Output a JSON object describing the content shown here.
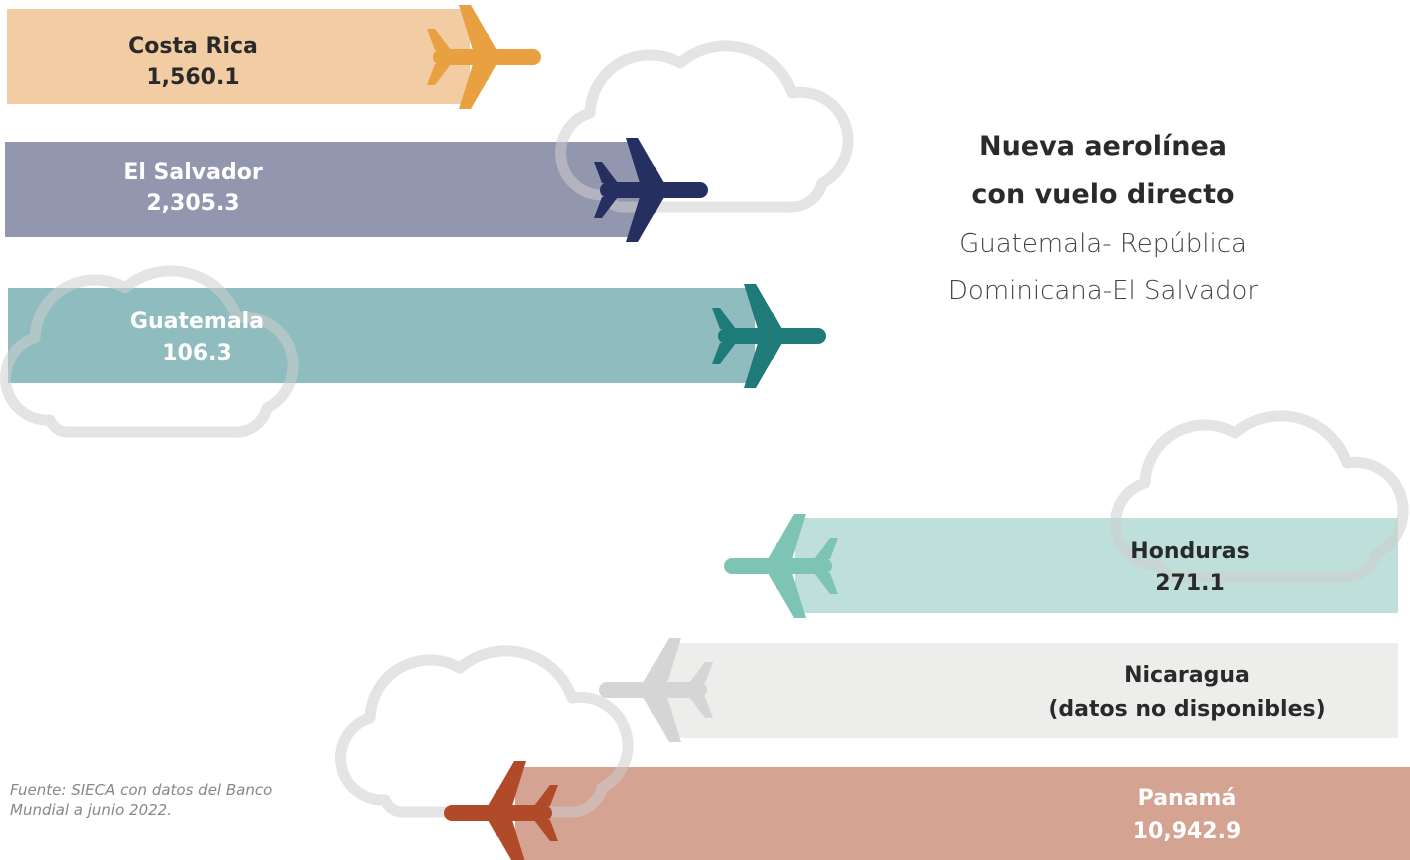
{
  "header": {
    "title_line1": "Nueva aerolínea",
    "title_line2": "con vuelo directo",
    "subtitle_line1": "Guatemala- República",
    "subtitle_line2": "Dominicana-El Salvador"
  },
  "items": [
    {
      "name": "Costa Rica",
      "value": "1,560.1"
    },
    {
      "name": "El Salvador",
      "value": "2,305.3"
    },
    {
      "name": "Guatemala",
      "value": "106.3"
    },
    {
      "name": "Honduras",
      "value": "271.1"
    },
    {
      "name": "Nicaragua",
      "value": "(datos no disponibles)"
    },
    {
      "name": "Panamá",
      "value": "10,942.9"
    }
  ],
  "source": {
    "line1": "Fuente: SIECA con datos del Banco",
    "line2": "Mundial a junio 2022."
  }
}
